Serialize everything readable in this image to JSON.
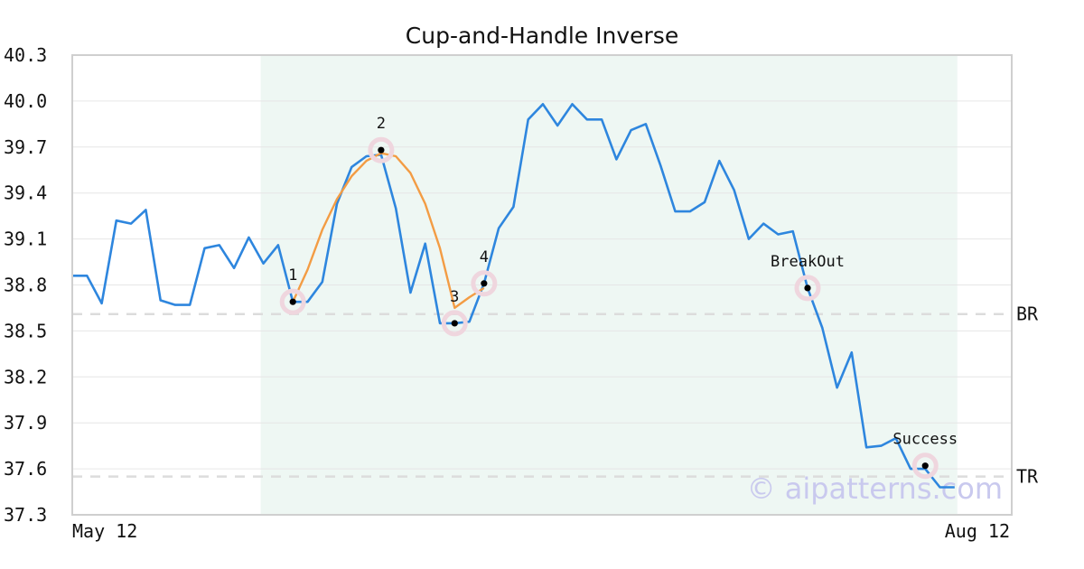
{
  "chart_data": {
    "type": "line",
    "title": "Cup-and-Handle Inverse",
    "ylim": [
      37.3,
      40.3
    ],
    "y_ticks": [
      37.3,
      37.6,
      37.9,
      38.2,
      38.5,
      38.8,
      39.1,
      39.4,
      39.7,
      40.0,
      40.3
    ],
    "x_labels": [
      "May 12",
      "Aug 12"
    ],
    "grid": "horizontal",
    "series": [
      {
        "color": "#2e86de",
        "values": [
          38.86,
          38.86,
          38.68,
          39.22,
          39.2,
          39.29,
          38.7,
          38.67,
          38.67,
          39.04,
          39.06,
          38.91,
          39.11,
          38.94,
          39.06,
          38.69,
          38.69,
          38.82,
          39.33,
          39.57,
          39.64,
          39.65,
          39.3,
          38.75,
          39.07,
          38.55,
          38.55,
          38.56,
          38.81,
          39.17,
          39.31,
          39.88,
          39.98,
          39.84,
          39.98,
          39.88,
          39.88,
          39.62,
          39.81,
          39.85,
          39.58,
          39.28,
          39.28,
          39.34,
          39.61,
          39.42,
          39.1,
          39.2,
          39.13,
          39.15,
          38.78,
          38.52,
          38.13,
          38.36,
          37.74,
          37.75,
          37.8,
          37.6,
          37.6,
          37.48,
          37.48
        ]
      },
      {
        "color": "#f39c44",
        "start_index": 15,
        "values": [
          38.69,
          38.9,
          39.16,
          39.36,
          39.51,
          39.61,
          39.66,
          39.64,
          39.53,
          39.33,
          39.04,
          38.65,
          38.72,
          38.78
        ]
      }
    ],
    "shaded_range": [
      13,
      60
    ],
    "points": [
      {
        "label": "1",
        "index": 15,
        "value": 38.69
      },
      {
        "label": "2",
        "index": 21,
        "value": 39.68
      },
      {
        "label": "3",
        "index": 26,
        "value": 38.55
      },
      {
        "label": "4",
        "index": 28,
        "value": 38.81
      },
      {
        "label": "BreakOut",
        "index": 50,
        "value": 38.78
      },
      {
        "label": "Success",
        "index": 58,
        "value": 37.62
      }
    ],
    "levels": [
      {
        "label": "BR",
        "value": 38.61
      },
      {
        "label": "TR",
        "value": 37.55
      }
    ],
    "watermark": "© aipatterns.com"
  }
}
